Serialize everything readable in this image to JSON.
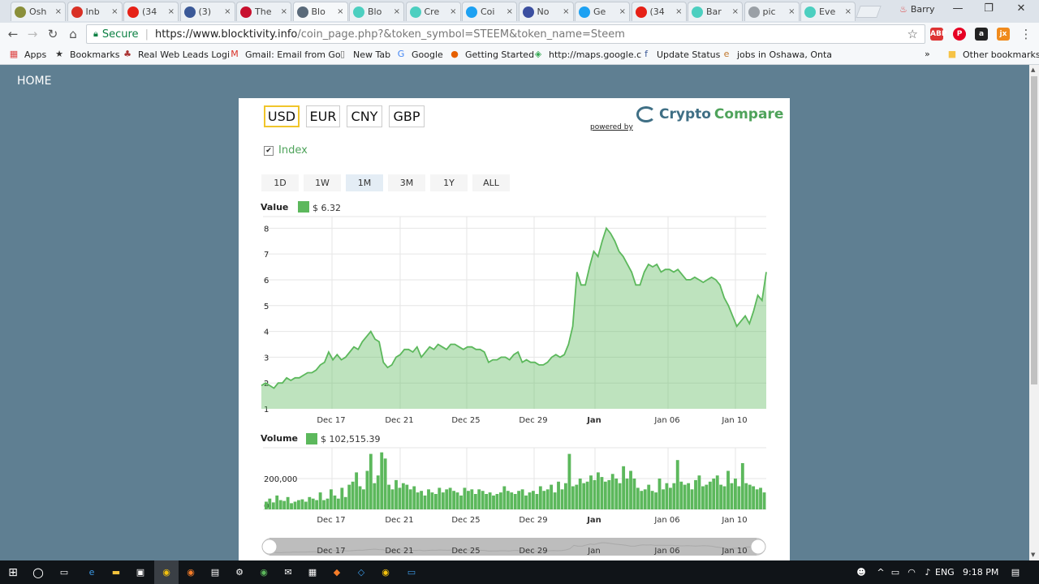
{
  "browser": {
    "tabs": [
      {
        "title": "Osh",
        "icon": "chrome-icon",
        "color": "#8a8f3a"
      },
      {
        "title": "Inb",
        "icon": "gmail-icon",
        "color": "#d93025"
      },
      {
        "title": "(34",
        "icon": "youtube-icon",
        "color": "#e62117"
      },
      {
        "title": "(3)",
        "icon": "facebook-icon",
        "color": "#3b5998"
      },
      {
        "title": "The",
        "icon": "news-icon",
        "color": "#c8102e"
      },
      {
        "title": "Blo",
        "icon": "globe-icon",
        "color": "#5a6a7a"
      },
      {
        "title": "Blo",
        "icon": "steem-icon",
        "color": "#4ccfc0"
      },
      {
        "title": "Cre",
        "icon": "steem-icon",
        "color": "#4ccfc0"
      },
      {
        "title": "Coi",
        "icon": "twitter-icon",
        "color": "#1da1f2"
      },
      {
        "title": "No",
        "icon": "fp-icon",
        "color": "#3b4fa0"
      },
      {
        "title": "Ge",
        "icon": "twitter-icon",
        "color": "#1da1f2"
      },
      {
        "title": "(34",
        "icon": "youtube-icon",
        "color": "#e62117"
      },
      {
        "title": "Bar",
        "icon": "steem-icon",
        "color": "#4ccfc0"
      },
      {
        "title": "pic",
        "icon": "image-icon",
        "color": "#9aa0a6"
      },
      {
        "title": "Eve",
        "icon": "steem-icon",
        "color": "#4ccfc0"
      }
    ],
    "active_tab_index": 5,
    "tab_close": "×",
    "profile_name": "Barry",
    "secure_label": "Secure",
    "url_host": "https://www.blocktivity.info",
    "url_path": "/coin_page.php?&token_symbol=STEEM&token_name=Steem",
    "bookmarks": [
      {
        "label": "Apps",
        "icon": "apps-icon"
      },
      {
        "label": "Bookmarks",
        "icon": "star-icon"
      },
      {
        "label": "Real Web Leads Logi",
        "icon": "leads-icon"
      },
      {
        "label": "Gmail: Email from Go",
        "icon": "gmail-icon"
      },
      {
        "label": "New Tab",
        "icon": "page-icon"
      },
      {
        "label": "Google",
        "icon": "google-icon"
      },
      {
        "label": "Getting Started",
        "icon": "firefox-icon"
      },
      {
        "label": "http://maps.google.c",
        "icon": "maps-icon"
      },
      {
        "label": "Update Status",
        "icon": "facebook-icon"
      },
      {
        "label": "jobs in Oshawa, Onta",
        "icon": "e-icon"
      }
    ],
    "overflow": "»",
    "other_bookmarks": "Other bookmarks"
  },
  "page": {
    "nav_home": "HOME",
    "currencies": [
      "USD",
      "EUR",
      "CNY",
      "GBP"
    ],
    "selected_currency": "USD",
    "brand": {
      "part1": "Crypto",
      "part2": "Compare"
    },
    "powered_by": "powered by",
    "index_label": "Index",
    "index_checked": "✔",
    "ranges": [
      "1D",
      "1W",
      "1M",
      "3M",
      "1Y",
      "ALL"
    ],
    "selected_range": "1M",
    "value_label": "Value",
    "value_text": "$ 6.32",
    "volume_label": "Volume",
    "volume_text": "$ 102,515.39",
    "accent_color": "#5cb85c"
  },
  "chart_data": [
    {
      "type": "area",
      "title": "Value",
      "x_ticks": [
        "Dec 17",
        "Dec 21",
        "Dec 25",
        "Dec 29",
        "Jan",
        "Jan 06",
        "Jan 10"
      ],
      "x_ticks_bold": [
        "Jan"
      ],
      "y_ticks": [
        1,
        2,
        3,
        4,
        5,
        6,
        7,
        8
      ],
      "ylim": [
        1,
        8.45
      ],
      "grid": true,
      "series": [
        {
          "values": [
            1.9,
            2.0,
            1.9,
            1.8,
            2.0,
            2.0,
            2.2,
            2.1,
            2.2,
            2.2,
            2.3,
            2.4,
            2.4,
            2.5,
            2.7,
            2.8,
            3.2,
            2.9,
            3.1,
            2.9,
            3.0,
            3.2,
            3.4,
            3.3,
            3.6,
            3.8,
            4.0,
            3.7,
            3.6,
            2.8,
            2.6,
            2.7,
            3.0,
            3.1,
            3.3,
            3.3,
            3.2,
            3.4,
            3.0,
            3.2,
            3.4,
            3.3,
            3.5,
            3.4,
            3.3,
            3.5,
            3.5,
            3.4,
            3.3,
            3.4,
            3.4,
            3.3,
            3.3,
            3.2,
            2.8,
            2.9,
            2.9,
            3.0,
            3.0,
            2.9,
            3.1,
            3.2,
            2.8,
            2.9,
            2.8,
            2.8,
            2.7,
            2.7,
            2.8,
            3.0,
            3.1,
            3.0,
            3.1,
            3.5,
            4.2,
            6.3,
            5.8,
            5.8,
            6.5,
            7.1,
            6.9,
            7.5,
            8.0,
            7.8,
            7.5,
            7.1,
            6.9,
            6.6,
            6.3,
            5.8,
            5.8,
            6.3,
            6.6,
            6.5,
            6.6,
            6.3,
            6.4,
            6.4,
            6.3,
            6.4,
            6.2,
            6.0,
            6.0,
            6.1,
            6.0,
            5.9,
            6.0,
            6.1,
            6.0,
            5.8,
            5.3,
            5.0,
            4.6,
            4.2,
            4.4,
            4.6,
            4.3,
            4.8,
            5.4,
            5.2,
            6.3
          ]
        }
      ]
    },
    {
      "type": "bar",
      "title": "Volume",
      "x_ticks": [
        "Dec 17",
        "Dec 21",
        "Dec 25",
        "Dec 29",
        "Jan",
        "Jan 06",
        "Jan 10"
      ],
      "x_ticks_bold": [
        "Jan"
      ],
      "y_ticks": [
        0,
        200000
      ],
      "ylim": [
        0,
        400000
      ],
      "grid": true,
      "series": [
        {
          "values": [
            50000,
            70000,
            45000,
            90000,
            60000,
            55000,
            80000,
            40000,
            50000,
            60000,
            65000,
            50000,
            80000,
            70000,
            60000,
            110000,
            60000,
            70000,
            130000,
            90000,
            70000,
            140000,
            80000,
            160000,
            180000,
            240000,
            150000,
            130000,
            250000,
            360000,
            170000,
            220000,
            370000,
            330000,
            160000,
            130000,
            190000,
            140000,
            170000,
            160000,
            130000,
            150000,
            110000,
            120000,
            90000,
            130000,
            110000,
            100000,
            140000,
            110000,
            130000,
            140000,
            120000,
            110000,
            90000,
            140000,
            120000,
            130000,
            100000,
            130000,
            120000,
            100000,
            110000,
            90000,
            100000,
            110000,
            150000,
            120000,
            110000,
            100000,
            120000,
            130000,
            90000,
            110000,
            120000,
            100000,
            150000,
            120000,
            130000,
            160000,
            110000,
            180000,
            130000,
            170000,
            360000,
            150000,
            160000,
            200000,
            170000,
            180000,
            220000,
            190000,
            240000,
            210000,
            180000,
            190000,
            230000,
            200000,
            170000,
            280000,
            200000,
            250000,
            200000,
            140000,
            120000,
            130000,
            160000,
            120000,
            110000,
            200000,
            130000,
            170000,
            140000,
            170000,
            320000,
            180000,
            160000,
            170000,
            130000,
            190000,
            220000,
            150000,
            160000,
            180000,
            200000,
            220000,
            160000,
            150000,
            250000,
            170000,
            200000,
            150000,
            300000,
            170000,
            160000,
            150000,
            130000,
            140000,
            110000
          ]
        }
      ]
    }
  ],
  "taskbar": {
    "lang": "ENG",
    "time": "9:18 PM"
  }
}
